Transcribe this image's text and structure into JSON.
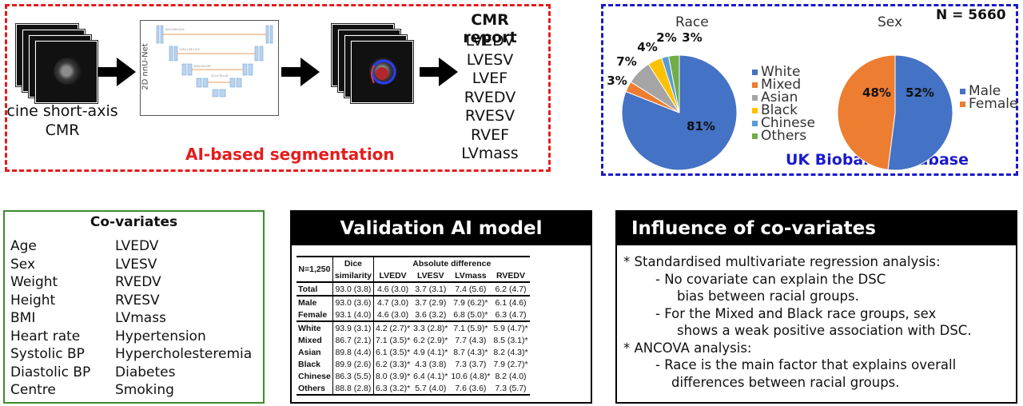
{
  "pipeline": {
    "input_label_1": "cine short-axis",
    "input_label_2": "CMR",
    "model_label": "2D nnU-Net",
    "segmentation_label": "AI-based segmentation",
    "report_title": "CMR report",
    "report_items": [
      "LVEDV",
      "LVESV",
      "LVEF",
      "RVEDV",
      "RVESV",
      "RVEF",
      "LVmass"
    ]
  },
  "biobank": {
    "n_label": "N = 5660",
    "database_label": "UK Biobank database",
    "race_title": "Race",
    "sex_title": "Sex"
  },
  "chart_data": [
    {
      "type": "pie",
      "title": "Race",
      "categories": [
        "White",
        "Mixed",
        "Asian",
        "Black",
        "Chinese",
        "Others"
      ],
      "values": [
        81,
        3,
        7,
        4,
        2,
        3
      ],
      "labels": [
        "81%",
        "3%",
        "7%",
        "4%",
        "2%",
        "3%"
      ],
      "colors": [
        "#4472c4",
        "#ed7d31",
        "#a5a5a5",
        "#ffc000",
        "#5b9bd5",
        "#70ad47"
      ],
      "legend": "right"
    },
    {
      "type": "pie",
      "title": "Sex",
      "categories": [
        "Male",
        "Female"
      ],
      "values": [
        52,
        48
      ],
      "labels": [
        "52%",
        "48%"
      ],
      "colors": [
        "#4472c4",
        "#ed7d31"
      ],
      "legend": "right"
    }
  ],
  "covariates": {
    "title": "Co-variates",
    "left": [
      "Age",
      "Sex",
      "Weight",
      "Height",
      "BMI",
      "Heart rate",
      "Systolic BP",
      "Diastolic BP",
      "Centre"
    ],
    "right": [
      "LVEDV",
      "LVESV",
      "RVEDV",
      "RVESV",
      "LVmass",
      "Hypertension",
      "Hypercholesteremia",
      "Diabetes",
      "Smoking"
    ]
  },
  "validation": {
    "title": "Validation AI model",
    "n": "N=1,250",
    "dice_header_1": "Dice",
    "dice_header_2": "similarity",
    "abs_header": "Absolute difference",
    "columns": [
      "LVEDV",
      "LVESV",
      "LVmass",
      "RVEDV"
    ],
    "groups": [
      [
        [
          "Total",
          "93.0 (3.8)",
          "4.6 (3.0)",
          "3.7 (3.1)",
          "7.4 (5.6)",
          "6.2 (4.7)"
        ]
      ],
      [
        [
          "Male",
          "93.0 (3.6)",
          "4.7 (3.0)",
          "3.7 (2.9)",
          "7.9 (6.2)*",
          "6.1 (4.6)"
        ],
        [
          "Female",
          "93.1 (4.0)",
          "4.6 (3.0)",
          "3.6 (3.2)",
          "6.8 (5.0)*",
          "6.3 (4.7)"
        ]
      ],
      [
        [
          "White",
          "93.9 (3.1)",
          "4.2 (2.7)*",
          "3.3 (2.8)*",
          "7.1 (5.9)*",
          "5.9 (4.7)*"
        ],
        [
          "Mixed",
          "86.7 (2.1)",
          "7.1 (3.5)*",
          "6.2 (2.9)*",
          "7.7 (4.3)",
          "8.5 (3.1)*"
        ],
        [
          "Asian",
          "89.8 (4.4)",
          "6.1 (3.5)*",
          "4.9 (4.1)*",
          "8.7 (4.3)*",
          "8.2 (4.3)*"
        ],
        [
          "Black",
          "89.9 (2.6)",
          "6.2 (3.3)*",
          "4.3 (3.8)",
          "7.3 (3.7)",
          "7.9 (2.7)*"
        ],
        [
          "Chinese",
          "86.3 (5.5)",
          "8.0 (3.9)*",
          "6.4 (4.1)*",
          "10.6 (4.8)*",
          "8.2 (4.0)"
        ],
        [
          "Others",
          "88.8 (2.8)",
          "6.3 (3.2)*",
          "5.7 (4.0)",
          "7.6 (3.6)",
          "7.3 (5.7)"
        ]
      ]
    ]
  },
  "influence": {
    "title": "Influence of co-variates",
    "lines": [
      "* Standardised multivariate regression analysis:",
      "-   No covariate can explain the DSC",
      "bias between racial groups.",
      "-   For the Mixed and Black race groups, sex",
      "shows a weak positive association with DSC.",
      "* ANCOVA analysis:",
      "-  Race is the main factor that explains overall",
      "differences between racial groups."
    ]
  }
}
